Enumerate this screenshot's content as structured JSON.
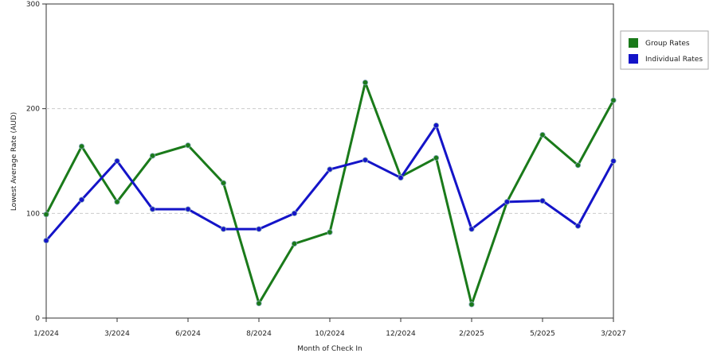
{
  "chart_data": {
    "type": "line",
    "x_label": "Month of Check In",
    "y_label": "Lowest Average Rate (AUD)",
    "categories": [
      "1/2024",
      null,
      "3/2024",
      null,
      "6/2024",
      null,
      "8/2024",
      null,
      "10/2024",
      null,
      "12/2024",
      null,
      "2/2025",
      null,
      "5/2025",
      null,
      "3/2027"
    ],
    "series": [
      {
        "name": "Group Rates",
        "color": "#1a7a1a",
        "values": [
          99,
          164,
          111,
          155,
          165,
          129,
          14,
          71,
          82,
          225,
          135,
          153,
          13,
          111,
          175,
          146,
          208
        ]
      },
      {
        "name": "Individual Rates",
        "color": "#1414c8",
        "values": [
          74,
          113,
          150,
          104,
          104,
          85,
          85,
          100,
          142,
          151,
          134,
          184,
          85,
          111,
          112,
          88,
          150
        ]
      }
    ],
    "ylim": [
      0,
      300
    ],
    "yticks": [
      0,
      100,
      200,
      300
    ],
    "grid": true,
    "legend": "right"
  }
}
